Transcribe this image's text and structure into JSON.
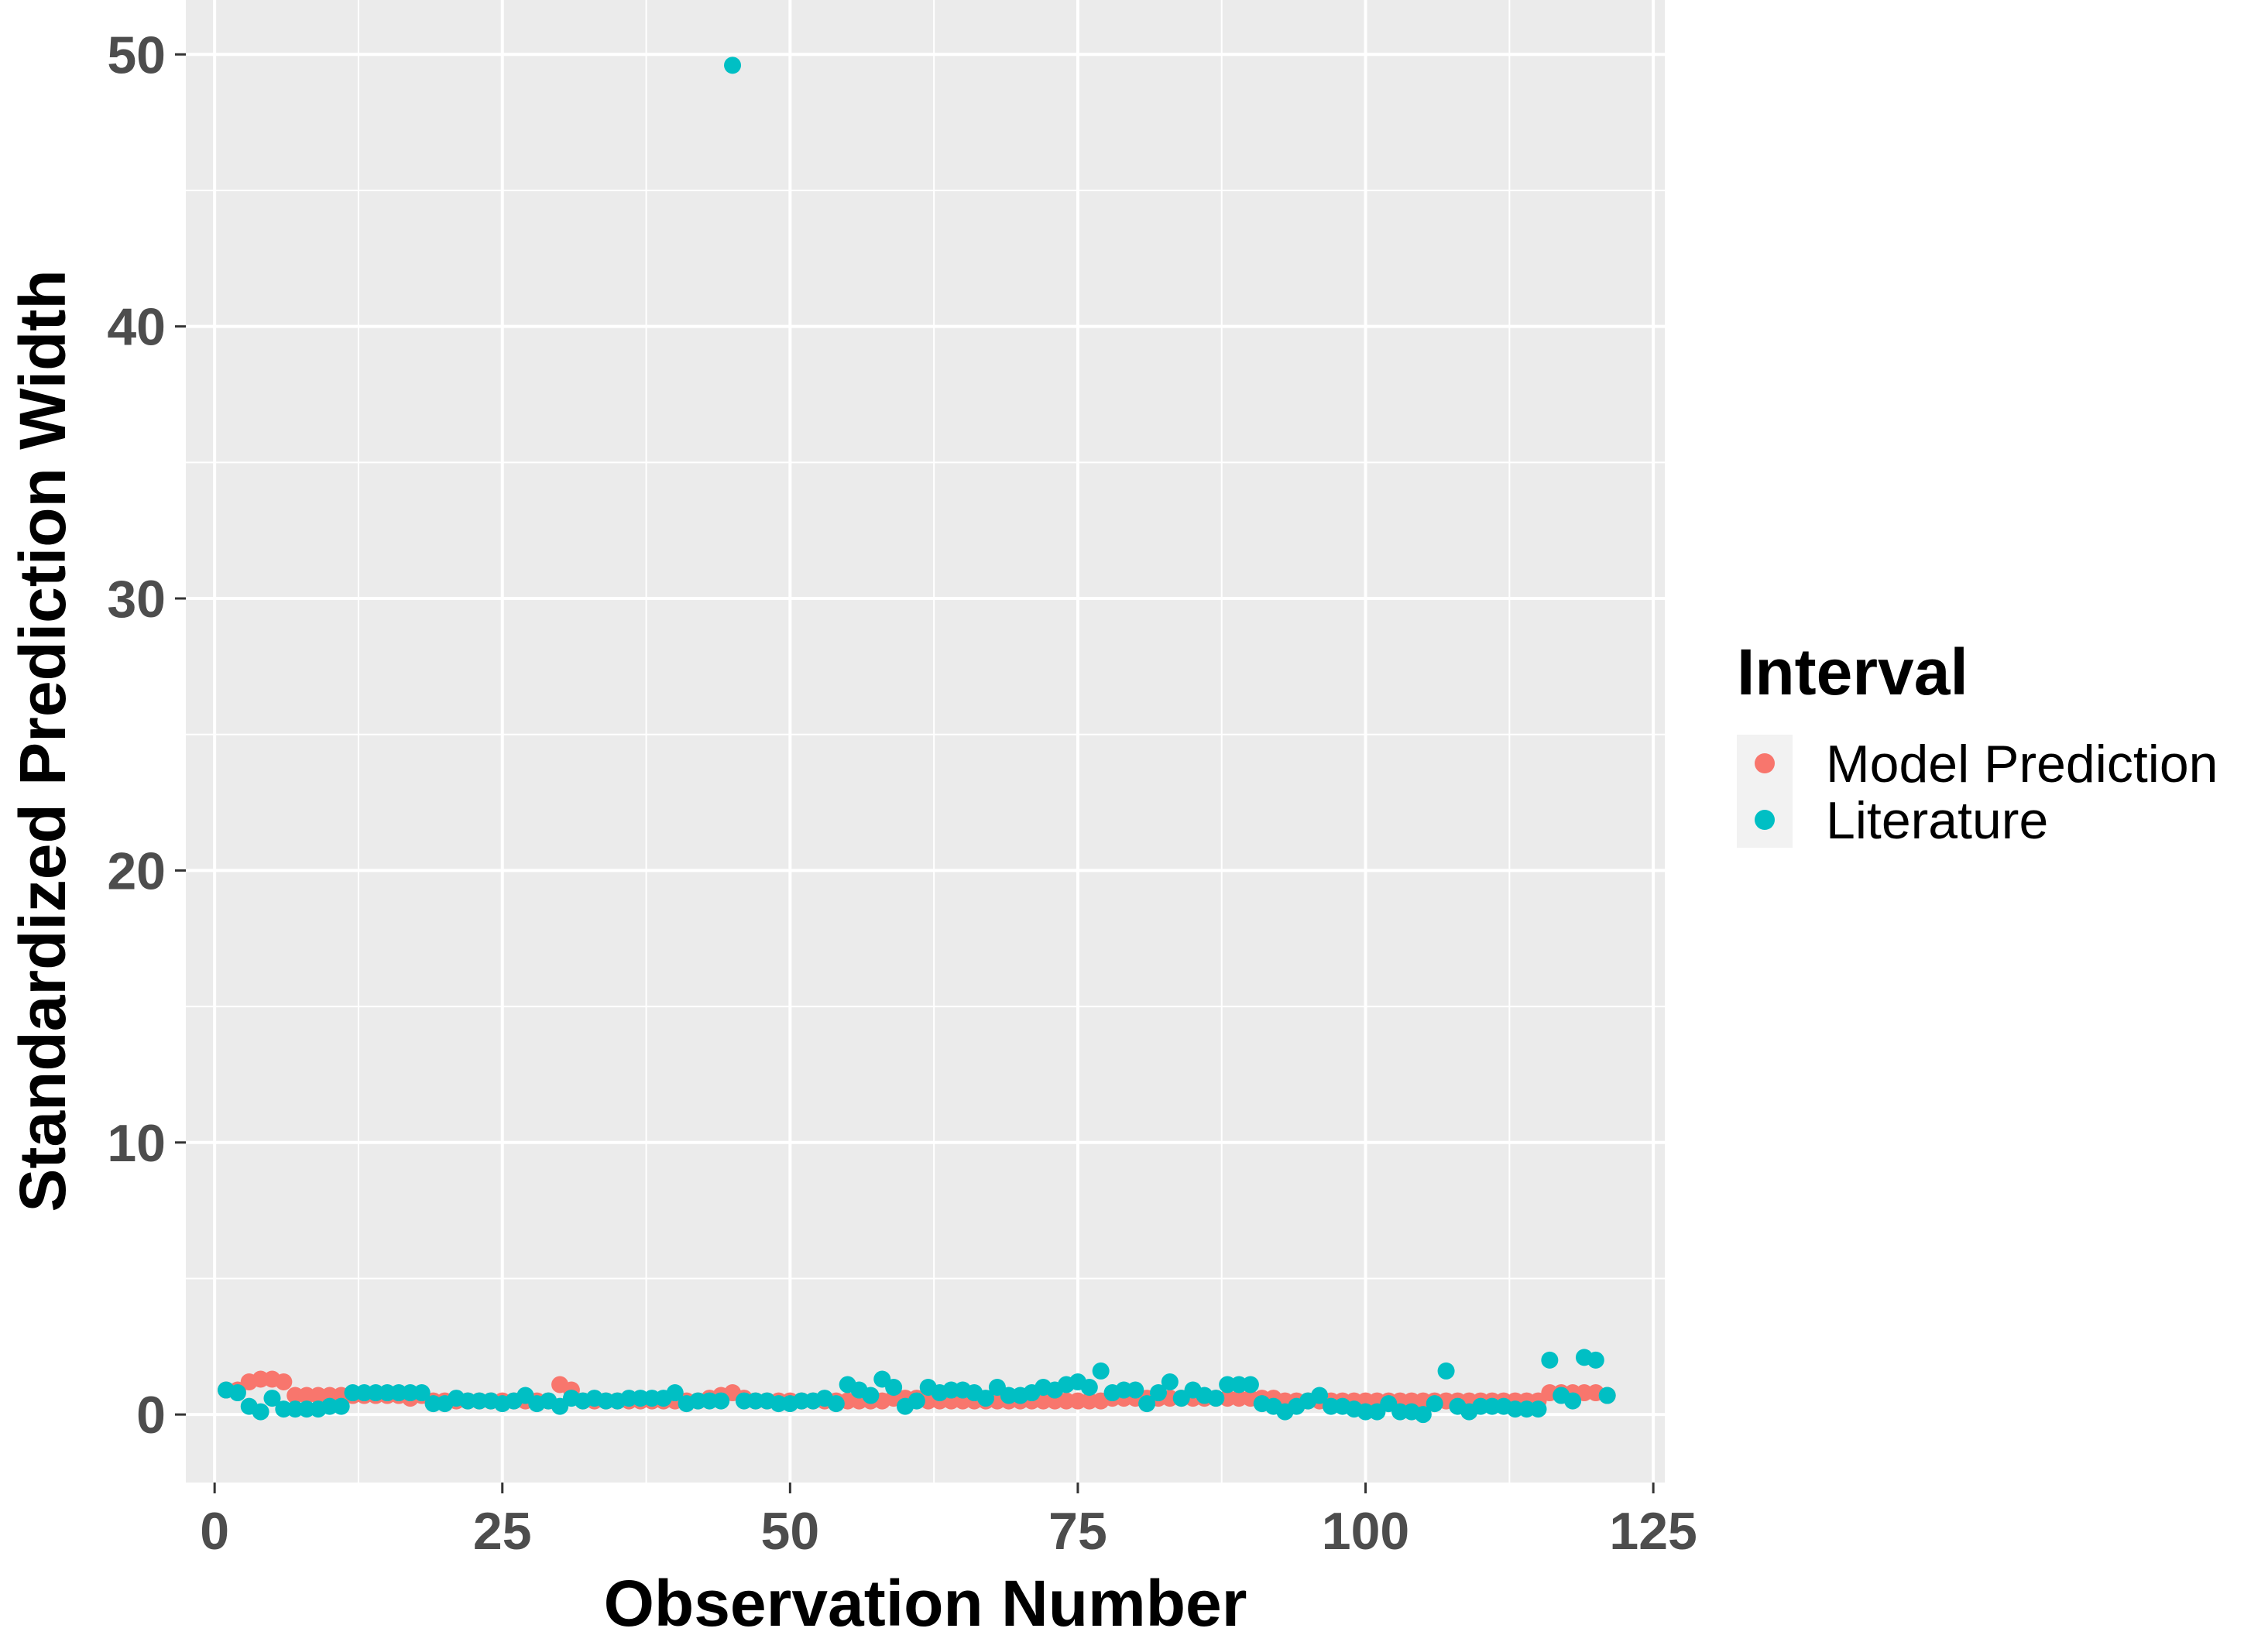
{
  "chart_data": {
    "type": "scatter",
    "title": "",
    "xlabel": "Observation Number",
    "ylabel": "Standardized Prediction Width",
    "xlim": [
      -2.5,
      126
    ],
    "ylim": [
      -2.5,
      52
    ],
    "x_ticks": [
      0,
      25,
      50,
      75,
      100,
      125
    ],
    "y_ticks": [
      0,
      10,
      20,
      30,
      40,
      50
    ],
    "x_tick_labels": [
      "0",
      "25",
      "50",
      "75",
      "100",
      "125"
    ],
    "y_tick_labels": [
      "0",
      "10",
      "20",
      "30",
      "40",
      "50"
    ],
    "grid": true,
    "legend": {
      "title": "Interval",
      "placement": "right",
      "entries": [
        {
          "label": "Model Prediction",
          "color": "#F8766D"
        },
        {
          "label": "Literature",
          "color": "#00BFC4"
        }
      ]
    },
    "series": [
      {
        "name": "Model Prediction",
        "color": "#F8766D",
        "x": [
          1,
          2,
          3,
          4,
          5,
          6,
          7,
          8,
          9,
          10,
          11,
          12,
          13,
          14,
          15,
          16,
          17,
          18,
          19,
          20,
          21,
          22,
          23,
          24,
          25,
          26,
          27,
          28,
          29,
          30,
          31,
          32,
          33,
          34,
          35,
          36,
          37,
          38,
          39,
          40,
          41,
          42,
          43,
          44,
          45,
          46,
          47,
          48,
          49,
          50,
          51,
          52,
          53,
          54,
          55,
          56,
          57,
          58,
          59,
          60,
          61,
          62,
          63,
          64,
          65,
          66,
          67,
          68,
          69,
          70,
          71,
          72,
          73,
          74,
          75,
          76,
          77,
          78,
          79,
          80,
          81,
          82,
          83,
          84,
          85,
          86,
          87,
          88,
          89,
          90,
          91,
          92,
          93,
          94,
          95,
          96,
          97,
          98,
          99,
          100,
          101,
          102,
          103,
          104,
          105,
          106,
          107,
          108,
          109,
          110,
          111,
          112,
          113,
          114,
          115,
          116,
          117,
          118,
          119,
          120,
          121
        ],
        "y": [
          0.9,
          0.9,
          1.2,
          1.3,
          1.3,
          1.2,
          0.7,
          0.7,
          0.7,
          0.7,
          0.7,
          0.7,
          0.7,
          0.7,
          0.7,
          0.7,
          0.6,
          0.7,
          0.5,
          0.5,
          0.5,
          0.5,
          0.5,
          0.5,
          0.5,
          0.5,
          0.5,
          0.5,
          0.5,
          1.1,
          0.9,
          0.5,
          0.5,
          0.5,
          0.5,
          0.5,
          0.5,
          0.5,
          0.5,
          0.5,
          0.5,
          0.5,
          0.6,
          0.7,
          0.8,
          0.6,
          0.5,
          0.5,
          0.5,
          0.5,
          0.5,
          0.5,
          0.5,
          0.5,
          0.5,
          0.5,
          0.5,
          0.5,
          0.6,
          0.6,
          0.6,
          0.5,
          0.5,
          0.5,
          0.5,
          0.5,
          0.5,
          0.5,
          0.5,
          0.5,
          0.5,
          0.5,
          0.5,
          0.5,
          0.5,
          0.5,
          0.5,
          0.6,
          0.6,
          0.6,
          0.6,
          0.6,
          0.6,
          0.6,
          0.6,
          0.6,
          0.6,
          0.6,
          0.6,
          0.6,
          0.6,
          0.6,
          0.5,
          0.5,
          0.5,
          0.5,
          0.5,
          0.5,
          0.5,
          0.5,
          0.5,
          0.5,
          0.5,
          0.5,
          0.5,
          0.5,
          0.5,
          0.5,
          0.5,
          0.5,
          0.5,
          0.5,
          0.5,
          0.5,
          0.5,
          0.8,
          0.8,
          0.8,
          0.8,
          0.8,
          0.7
        ]
      },
      {
        "name": "Literature",
        "color": "#00BFC4",
        "x": [
          1,
          2,
          3,
          4,
          5,
          6,
          7,
          8,
          9,
          10,
          11,
          12,
          13,
          14,
          15,
          16,
          17,
          18,
          19,
          20,
          21,
          22,
          23,
          24,
          25,
          26,
          27,
          28,
          29,
          30,
          31,
          32,
          33,
          34,
          35,
          36,
          37,
          38,
          39,
          40,
          41,
          42,
          43,
          44,
          45,
          46,
          47,
          48,
          49,
          50,
          51,
          52,
          53,
          54,
          55,
          56,
          57,
          58,
          59,
          60,
          61,
          62,
          63,
          64,
          65,
          66,
          67,
          68,
          69,
          70,
          71,
          72,
          73,
          74,
          75,
          76,
          77,
          78,
          79,
          80,
          81,
          82,
          83,
          84,
          85,
          86,
          87,
          88,
          89,
          90,
          91,
          92,
          93,
          94,
          95,
          96,
          97,
          98,
          99,
          100,
          101,
          102,
          103,
          104,
          105,
          106,
          107,
          108,
          109,
          110,
          111,
          112,
          113,
          114,
          115,
          116,
          117,
          118,
          119,
          120,
          121
        ],
        "y": [
          0.9,
          0.8,
          0.3,
          0.1,
          0.6,
          0.2,
          0.2,
          0.2,
          0.2,
          0.3,
          0.3,
          0.8,
          0.8,
          0.8,
          0.8,
          0.8,
          0.8,
          0.8,
          0.4,
          0.4,
          0.6,
          0.5,
          0.5,
          0.5,
          0.4,
          0.5,
          0.7,
          0.4,
          0.5,
          0.3,
          0.6,
          0.5,
          0.6,
          0.5,
          0.5,
          0.6,
          0.6,
          0.6,
          0.6,
          0.8,
          0.4,
          0.5,
          0.5,
          0.5,
          49.6,
          0.5,
          0.5,
          0.5,
          0.4,
          0.4,
          0.5,
          0.5,
          0.6,
          0.4,
          1.1,
          0.9,
          0.7,
          1.3,
          1.0,
          0.3,
          0.5,
          1.0,
          0.8,
          0.9,
          0.9,
          0.8,
          0.6,
          1.0,
          0.7,
          0.7,
          0.8,
          1.0,
          0.9,
          1.1,
          1.2,
          1.0,
          1.6,
          0.8,
          0.9,
          0.9,
          0.4,
          0.8,
          1.2,
          0.6,
          0.9,
          0.7,
          0.6,
          1.1,
          1.1,
          1.1,
          0.4,
          0.3,
          0.1,
          0.3,
          0.5,
          0.7,
          0.3,
          0.3,
          0.2,
          0.1,
          0.1,
          0.4,
          0.1,
          0.1,
          0.0,
          0.4,
          1.6,
          0.3,
          0.1,
          0.3,
          0.3,
          0.3,
          0.2,
          0.2,
          0.2,
          2.0,
          0.7,
          0.5,
          2.1,
          2.0,
          0.7
        ]
      }
    ]
  }
}
